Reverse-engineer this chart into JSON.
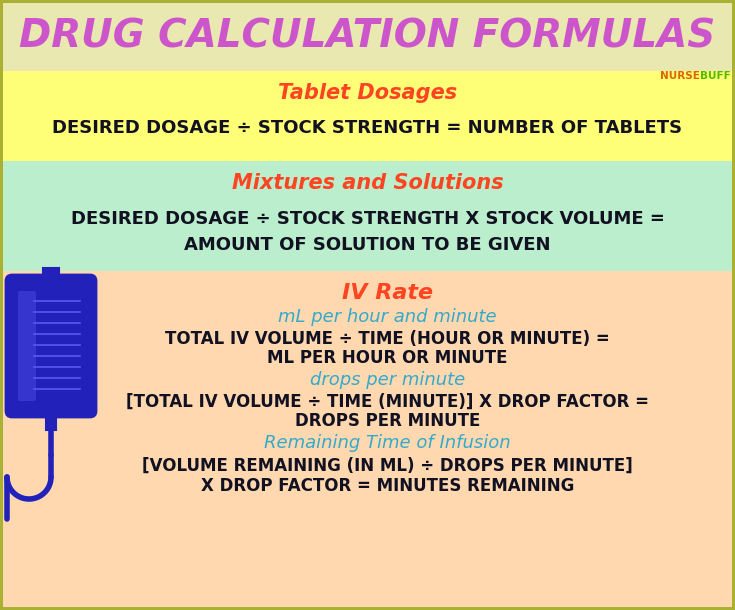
{
  "title": "DRUG CALCULATION FORMULAS",
  "title_color": "#cc55cc",
  "title_bg": "#e8e8b0",
  "border_color": "#aab030",
  "nursebuff_color1": "#dd6600",
  "nursebuff_color2": "#55bb00",
  "section1_bg": "#ffff77",
  "section1_title": "Tablet Dosages",
  "section1_title_color": "#ff4422",
  "section1_body": "DESIRED DOSAGE ÷ STOCK STRENGTH = NUMBER OF TABLETS",
  "section2_bg": "#bbeecc",
  "section2_title": "Mixtures and Solutions",
  "section2_title_color": "#ff4422",
  "section2_body_line1": "DESIRED DOSAGE ÷ STOCK STRENGTH X STOCK VOLUME =",
  "section2_body_line2": "AMOUNT OF SOLUTION TO BE GIVEN",
  "section3_bg": "#ffd8b0",
  "section3_title": "IV Rate",
  "section3_title_color": "#ff4422",
  "section3_sub1": "mL per hour and minute",
  "section3_sub1_color": "#33aacc",
  "section3_body1_line1": "TOTAL IV VOLUME ÷ TIME (HOUR OR MINUTE) =",
  "section3_body1_line2": "ML PER HOUR OR MINUTE",
  "section3_sub2": "drops per minute",
  "section3_sub2_color": "#33aacc",
  "section3_body2_line1": "[TOTAL IV VOLUME ÷ TIME (MINUTE)] X DROP FACTOR =",
  "section3_body2_line2": "DROPS PER MINUTE",
  "section3_sub3": "Remaining Time of Infusion",
  "section3_sub3_color": "#33aacc",
  "section3_body3_line1": "[VOLUME REMAINING (IN ML) ÷ DROPS PER MINUTE]",
  "section3_body3_line2": "X DROP FACTOR = MINUTES REMAINING",
  "body_color": "#111122",
  "iv_bag_color": "#2222bb",
  "iv_bag_fill": "#2222bb",
  "fig_bg": "#e0e0a0"
}
